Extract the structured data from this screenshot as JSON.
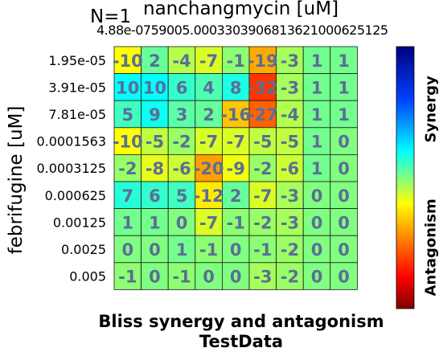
{
  "header": {
    "n_label": "N=1",
    "x_title": "nanchangmycin [uM]",
    "x_ticks_text": "4.88e-0759005.0003303906813621000625125"
  },
  "y_title": "febrifugine [uM]",
  "bottom": {
    "title": "Bliss synergy and antagonism",
    "subtitle": "TestData"
  },
  "colorbar": {
    "top_label": "Synergy",
    "bottom_label": "Antagonism",
    "colors": [
      "#000080",
      "#0000ff",
      "#00bfff",
      "#40ffbf",
      "#bfff40",
      "#ffbf00",
      "#ff0000",
      "#800000"
    ]
  },
  "chart_data": {
    "type": "heatmap",
    "title": "Bliss synergy and antagonism",
    "subtitle": "TestData",
    "xlabel": "nanchangmycin [uM]",
    "ylabel": "febrifugine [uM]",
    "y_categories": [
      "1.95e-05",
      "3.91e-05",
      "7.81e-05",
      "0.0001563",
      "0.0003125",
      "0.000625",
      "0.00125",
      "0.0025",
      "0.005"
    ],
    "values": [
      [
        -10,
        2,
        -4,
        -7,
        -1,
        -19,
        -3,
        1,
        1
      ],
      [
        10,
        10,
        6,
        4,
        8,
        -32,
        -3,
        1,
        1
      ],
      [
        5,
        9,
        3,
        2,
        -16,
        -27,
        -4,
        1,
        1
      ],
      [
        -10,
        -5,
        -2,
        -7,
        -7,
        -5,
        -5,
        1,
        0
      ],
      [
        -2,
        -8,
        -6,
        -20,
        -9,
        -2,
        -6,
        1,
        0
      ],
      [
        7,
        6,
        5,
        -12,
        2,
        -7,
        -3,
        0,
        0
      ],
      [
        1,
        1,
        0,
        -7,
        -1,
        -2,
        -3,
        0,
        0
      ],
      [
        0,
        0,
        1,
        -1,
        0,
        -1,
        -2,
        0,
        0
      ],
      [
        -1,
        0,
        -1,
        0,
        0,
        -3,
        -2,
        0,
        0
      ]
    ],
    "cell_labels": [
      [
        "-10",
        "2",
        "-4",
        "-7",
        "-1",
        "-19",
        "-3",
        "1",
        "1"
      ],
      [
        "10",
        "10",
        "6",
        "4",
        "8",
        "-32",
        "-3",
        "1",
        "1"
      ],
      [
        "5",
        "9",
        "3",
        "2",
        "-16",
        "-27",
        "-4",
        "1",
        "1"
      ],
      [
        "-10",
        "-5",
        "-2",
        "-7",
        "-7",
        "-5",
        "-5",
        "1",
        "0"
      ],
      [
        "-2",
        "-8",
        "-6",
        "-20",
        "-9",
        "-2",
        "-6",
        "1",
        "0"
      ],
      [
        "7",
        "6",
        "5",
        "-12",
        "2",
        "-7",
        "-3",
        "0",
        "0"
      ],
      [
        "1",
        "1",
        "0",
        "-7",
        "-1",
        "-2",
        "-3",
        "0",
        "0"
      ],
      [
        "0",
        "0",
        "1",
        "-1",
        "0",
        "-1",
        "-2",
        "0",
        "0"
      ],
      [
        "-1",
        "0",
        "-1",
        "0",
        "0",
        "-3",
        "-2",
        "0",
        "0"
      ]
    ],
    "value_range": [
      -50,
      50
    ],
    "label_color": "#5b6e96",
    "grid": true
  }
}
